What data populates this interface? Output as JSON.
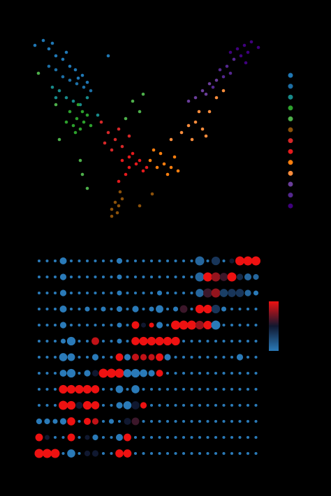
{
  "chart_data": [
    {
      "type": "scatter",
      "xlim": [
        40,
        380
      ],
      "ylim": [
        0,
        280
      ],
      "legend": "right",
      "series": [
        {
          "color": "#1f77b4",
          "x": [
            50,
            62,
            70,
            80,
            90,
            100,
            108,
            118,
            125,
            75,
            95,
            112,
            155
          ],
          "y": [
            265,
            272,
            260,
            250,
            245,
            235,
            230,
            222,
            212,
            268,
            255,
            218,
            250
          ]
        },
        {
          "color": "#1c6ea4",
          "x": [
            80,
            90,
            100,
            110,
            120,
            70,
            130
          ],
          "y": [
            230,
            220,
            215,
            210,
            205,
            235,
            200
          ]
        },
        {
          "color": "#178a8a",
          "x": [
            75,
            85,
            95,
            105,
            115,
            80,
            125,
            140
          ],
          "y": [
            205,
            200,
            190,
            185,
            180,
            190,
            190,
            165
          ]
        },
        {
          "color": "#2ca02c",
          "x": [
            100,
            110,
            120,
            105,
            115,
            125,
            95,
            130,
            108,
            118,
            112
          ],
          "y": [
            170,
            160,
            155,
            150,
            145,
            165,
            155,
            150,
            140,
            170,
            180
          ]
        },
        {
          "color": "#4daf4a",
          "x": [
            80,
            85,
            115,
            118,
            125,
            190,
            200,
            205,
            180,
            55
          ],
          "y": [
            180,
            130,
            100,
            80,
            60,
            185,
            170,
            195,
            160,
            225
          ]
        },
        {
          "color": "#8c510a",
          "x": [
            160,
            165,
            170,
            175,
            168,
            160,
            172,
            200,
            218
          ],
          "y": [
            30,
            40,
            35,
            45,
            25,
            20,
            55,
            35,
            52
          ]
        },
        {
          "color": "#d62728",
          "x": [
            155,
            165,
            160,
            170,
            145,
            175,
            150,
            185
          ],
          "y": [
            140,
            130,
            115,
            145,
            155,
            120,
            125,
            135
          ]
        },
        {
          "color": "#e41a1c",
          "x": [
            175,
            185,
            195,
            205,
            190,
            200,
            210,
            180,
            170,
            185
          ],
          "y": [
            100,
            90,
            95,
            85,
            110,
            100,
            90,
            80,
            70,
            105
          ]
        },
        {
          "color": "#ff7f0e",
          "x": [
            215,
            225,
            235,
            245,
            230,
            250,
            240,
            255,
            220
          ],
          "y": [
            100,
            90,
            95,
            90,
            110,
            105,
            80,
            85,
            115
          ]
        },
        {
          "color": "#fd8d3c",
          "x": [
            260,
            270,
            280,
            290,
            300,
            310,
            320,
            285,
            295,
            275,
            245
          ],
          "y": [
            140,
            150,
            155,
            145,
            170,
            190,
            200,
            170,
            135,
            130,
            130
          ]
        },
        {
          "color": "#6a3d9a",
          "x": [
            280,
            290,
            300,
            310,
            270,
            295
          ],
          "y": [
            190,
            200,
            210,
            215,
            185,
            195
          ]
        },
        {
          "color": "#54278f",
          "x": [
            315,
            325,
            335,
            320,
            305,
            330
          ],
          "y": [
            230,
            235,
            245,
            220,
            205,
            225
          ]
        },
        {
          "color": "#3f007d",
          "x": [
            340,
            350,
            355,
            330,
            345,
            360,
            370,
            352
          ],
          "y": [
            260,
            265,
            255,
            255,
            250,
            270,
            262,
            240
          ]
        }
      ]
    },
    {
      "type": "dot_matrix",
      "colorscale": [
        "#2a7ab8",
        "#101830",
        "#ee1111"
      ],
      "colorbar": true,
      "size": [
        [
          0.1,
          0.1,
          0.1,
          0.6,
          0.1,
          0.1,
          0.1,
          0.1,
          0.1,
          0.1,
          0.4,
          0.1,
          0.1,
          0.1,
          0.1,
          0.1,
          0.1,
          0.1,
          0.1,
          0.1,
          1,
          0.1,
          0.9,
          0.1,
          0.3,
          1,
          1,
          1
        ],
        [
          0.1,
          0.1,
          0.1,
          0.5,
          0.1,
          0.1,
          0.1,
          0.1,
          0.1,
          0.1,
          0.3,
          0.1,
          0.1,
          0.1,
          0.1,
          0.1,
          0.1,
          0.1,
          0.1,
          0.1,
          1,
          1,
          1,
          0.8,
          1,
          0.5,
          0.6,
          0.4
        ],
        [
          0.1,
          0.1,
          0.1,
          0.5,
          0.1,
          0.1,
          0.1,
          0.1,
          0.1,
          0.1,
          0.3,
          0.1,
          0.1,
          0.1,
          0.1,
          0.3,
          0.1,
          0.1,
          0.1,
          0.1,
          0.8,
          1,
          1,
          0.8,
          0.8,
          0.8,
          0.5,
          0.3
        ],
        [
          0.1,
          0.1,
          0.1,
          0.6,
          0.1,
          0.1,
          0.3,
          0.1,
          0.3,
          0.1,
          0.4,
          0.1,
          0.5,
          0.1,
          0.3,
          0.7,
          0.1,
          0.3,
          0.7,
          0.1,
          0.9,
          0.9,
          0.9,
          0.3,
          0.1,
          0.1,
          0.1,
          0.1
        ],
        [
          0.1,
          0.1,
          0.1,
          0.5,
          0.1,
          0.1,
          0.1,
          0.1,
          0.1,
          0.1,
          0.3,
          0.1,
          0.7,
          0.3,
          0.3,
          0.5,
          0.1,
          1,
          1,
          1,
          0.9,
          0.9,
          1,
          0.1,
          0.1,
          0.1,
          0.1,
          0.1
        ],
        [
          0.1,
          0.1,
          0.1,
          0.3,
          0.9,
          0.1,
          0.1,
          0.7,
          0.1,
          0.1,
          0.3,
          0.1,
          0.8,
          0.9,
          0.9,
          0.9,
          0.9,
          0.9,
          0.1,
          0.1,
          0.1,
          0.1,
          0.1,
          0.1,
          0.1,
          0.1,
          0.1,
          0.1
        ],
        [
          0.1,
          0.1,
          0.1,
          0.8,
          0.7,
          0.1,
          0.1,
          0.5,
          0.1,
          0.1,
          0.7,
          0.5,
          0.6,
          0.5,
          0.5,
          0.7,
          0.5,
          0.1,
          0.1,
          0.1,
          0.1,
          0.1,
          0.1,
          0.1,
          0.1,
          0.5,
          0.1,
          0.1
        ],
        [
          0.1,
          0.1,
          0.1,
          0.6,
          0.9,
          0.1,
          0.5,
          0.5,
          1,
          1,
          1,
          0.8,
          0.9,
          0.7,
          0.5,
          0.6,
          0.1,
          0.1,
          0.1,
          0.1,
          0.1,
          0.1,
          0.1,
          0.1,
          0.1,
          0.1,
          0.1,
          0.1
        ],
        [
          0.1,
          0.1,
          0.1,
          0.9,
          0.9,
          0.9,
          0.9,
          0.8,
          0.1,
          0.1,
          0.7,
          0.1,
          0.8,
          0.1,
          0.1,
          0.1,
          0.1,
          0.1,
          0.1,
          0.1,
          0.1,
          0.1,
          0.1,
          0.1,
          0.1,
          0.1,
          0.1,
          0.1
        ],
        [
          0.1,
          0.1,
          0.1,
          1,
          0.9,
          0.6,
          0.9,
          0.8,
          0.1,
          0.1,
          0.5,
          0.8,
          0.8,
          0.5,
          0.1,
          0.1,
          0.1,
          0.1,
          0.1,
          0.1,
          0.1,
          0.1,
          0.1,
          0.1,
          0.1,
          0.1,
          0.1,
          0.1
        ],
        [
          0.4,
          0.4,
          0.3,
          0.5,
          0.8,
          0.1,
          0.6,
          0.5,
          0.1,
          0.3,
          0.1,
          0.6,
          0.7,
          0.1,
          0.1,
          0.1,
          0.1,
          0.1,
          0.1,
          0.1,
          0.1,
          0.1,
          0.1,
          0.1,
          0.1,
          0.1,
          0.1,
          0.1
        ],
        [
          0.7,
          0.3,
          0.1,
          0.1,
          0.7,
          0.1,
          0.3,
          0.4,
          0.1,
          0.1,
          0.6,
          0.7,
          0.1,
          0.1,
          0.1,
          0.1,
          0.1,
          0.1,
          0.1,
          0.1,
          0.1,
          0.1,
          0.1,
          0.1,
          0.1,
          0.1,
          0.1,
          0.1
        ],
        [
          1,
          1,
          1,
          0.1,
          0.8,
          0.1,
          0.4,
          0.5,
          0.1,
          0.1,
          0.8,
          0.8,
          0.1,
          0.1,
          0.1,
          0.1,
          0.1,
          0.1,
          0.1,
          0.1,
          0.1,
          0.1,
          0.1,
          0.1,
          0.1,
          0.1,
          0.1,
          0.1
        ]
      ],
      "expr": [
        [
          0,
          0,
          0,
          0,
          0,
          0,
          0,
          0,
          0,
          0,
          0,
          0,
          0,
          0,
          0,
          0,
          0,
          0,
          0,
          0,
          0.1,
          0,
          0.35,
          0,
          0.5,
          1,
          1,
          1
        ],
        [
          0,
          0,
          0,
          0,
          0,
          0,
          0,
          0,
          0,
          0,
          0,
          0,
          0,
          0,
          0,
          0,
          0,
          0,
          0,
          0,
          0.1,
          1,
          0.8,
          0.6,
          1,
          0.4,
          0.1,
          0.1
        ],
        [
          0,
          0,
          0,
          0,
          0,
          0,
          0,
          0,
          0,
          0,
          0,
          0,
          0,
          0,
          0,
          0,
          0,
          0,
          0,
          0,
          0.1,
          0.6,
          0.8,
          0.3,
          0.35,
          0.35,
          0.1,
          0
        ],
        [
          0,
          0,
          0,
          0,
          0,
          0,
          0,
          0,
          0,
          0,
          0,
          0,
          0,
          0,
          0,
          0,
          0,
          0,
          0.6,
          0,
          1,
          1,
          0.35,
          0,
          0,
          0,
          0,
          0
        ],
        [
          0,
          0,
          0,
          0,
          0,
          0,
          0,
          0,
          0,
          0,
          0,
          0,
          1,
          0.5,
          1,
          0,
          0,
          1,
          1,
          1,
          0.8,
          1,
          0,
          0,
          0,
          0,
          0,
          0
        ],
        [
          0,
          0,
          0,
          0,
          0,
          0,
          0,
          0.9,
          0,
          0,
          0,
          0,
          1,
          1,
          1,
          1,
          1,
          1,
          0,
          0,
          0,
          0,
          0,
          0,
          0,
          0,
          0,
          0
        ],
        [
          0,
          0,
          0,
          0,
          0,
          0,
          0,
          0,
          0,
          0,
          1,
          0,
          0.9,
          0.9,
          0.9,
          1,
          0,
          0,
          0,
          0,
          0,
          0,
          0,
          0,
          0,
          0,
          0,
          0
        ],
        [
          0,
          0,
          0,
          0,
          0,
          0,
          0,
          0.5,
          1,
          1,
          1,
          0,
          0,
          0,
          0,
          1,
          0,
          0,
          0,
          0,
          0,
          0,
          0,
          0,
          0,
          0,
          0,
          0
        ],
        [
          0,
          0,
          0,
          1,
          1,
          1,
          1,
          1,
          0,
          0,
          0,
          0,
          0,
          0,
          0,
          0,
          0,
          0,
          0,
          0,
          0,
          0,
          0,
          0,
          0,
          0,
          0,
          0
        ],
        [
          0,
          0,
          0,
          1,
          1,
          0.5,
          1,
          1,
          0,
          0,
          0,
          0,
          0.5,
          1,
          0,
          0,
          0,
          0,
          0,
          0,
          0,
          0,
          0,
          0,
          0,
          0,
          0,
          0
        ],
        [
          0,
          0,
          0,
          0,
          1,
          0,
          1,
          0.9,
          0,
          0,
          0,
          0.5,
          0.6,
          0,
          0,
          0,
          0,
          0,
          0,
          0,
          0,
          0,
          0,
          0,
          0,
          0,
          0,
          0
        ],
        [
          1,
          0.5,
          0,
          0,
          1,
          0,
          0.5,
          0,
          0,
          0,
          0,
          1,
          0,
          0,
          0,
          0,
          0,
          0,
          0,
          0,
          0,
          0,
          0,
          0,
          0,
          0,
          0,
          0
        ],
        [
          1,
          1,
          1,
          0,
          0,
          0,
          0.5,
          0.5,
          0,
          0,
          1,
          1,
          0,
          0,
          0,
          0,
          0,
          0,
          0,
          0,
          0,
          0,
          0,
          0,
          0,
          0,
          0,
          0
        ]
      ]
    }
  ]
}
